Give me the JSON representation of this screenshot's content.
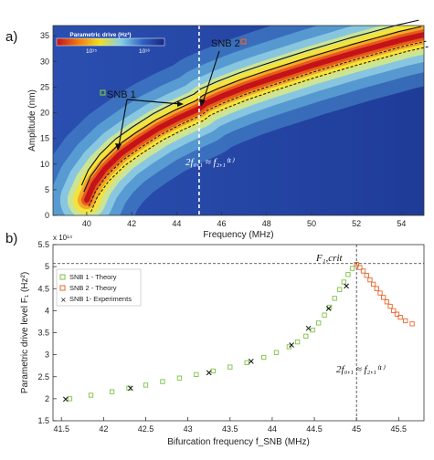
{
  "panel_a": {
    "letter": "a)",
    "colorbar": {
      "title": "Parametric drive (Hz²)",
      "tick_left": "10¹⁵",
      "tick_right": "10¹⁶"
    },
    "label_snb1": "SNB 1",
    "label_snb2": "SNB 2",
    "annotation": "2f₀,₁ ≈ f₂,₁⁽¹⁾"
  },
  "panel_b": {
    "letter": "b)",
    "exponent_label": "x 10¹⁴",
    "fcrit_label": "F₁,crit",
    "annotation": "2f₀,₁ ≈ f₂,₁⁽¹⁾",
    "legend": [
      "SNB 1 - Theory",
      "SNB 2 - Theory",
      "SNB 1- Experiments"
    ]
  },
  "colors": {
    "snb1": "#7dc242",
    "snb2": "#e8652b",
    "experiment": "#111111"
  },
  "chart_data": [
    {
      "type": "heatmap",
      "xlabel": "Frequency (MHz)",
      "ylabel": "Amplitude (nm)",
      "xlim": [
        38.5,
        55
      ],
      "ylim": [
        0,
        37
      ],
      "x_ticks": [
        40,
        42,
        44,
        46,
        48,
        50,
        52,
        54
      ],
      "y_ticks": [
        0,
        5,
        10,
        15,
        20,
        25,
        30,
        35
      ],
      "colorbar_scale": "log",
      "vertical_marker_x": 45,
      "series": [
        {
          "x": [
            40.0,
            40.3,
            40.8,
            41.5,
            42.3,
            43.2,
            44.0,
            44.7,
            45.0
          ],
          "y": [
            3,
            6,
            9,
            12,
            14.5,
            17,
            18.8,
            20.2,
            20.8
          ]
        },
        {
          "x": [
            44.7,
            45.3,
            46,
            47,
            48,
            49,
            50,
            51,
            52,
            53,
            54,
            55
          ],
          "y": [
            20.2,
            21.8,
            23.2,
            24.9,
            26.4,
            27.8,
            29.2,
            30.5,
            31.8,
            33.0,
            34.2,
            35.2
          ]
        }
      ]
    },
    {
      "type": "scatter",
      "xlabel": "Bifurcation frequency f_SNB (MHz)",
      "ylabel": "Parametric drive level F₁ (Hz²)",
      "xlim": [
        41.4,
        45.8
      ],
      "ylim": [
        1.5,
        5.5
      ],
      "x_ticks": [
        41.5,
        42,
        42.5,
        43,
        43.5,
        44,
        44.5,
        45,
        45.5
      ],
      "y_ticks": [
        1.5,
        2,
        2.5,
        3,
        3.5,
        4,
        4.5,
        5,
        5.5
      ],
      "y_multiplier": "1e14",
      "hline_y": 5.07,
      "vline_x": 45.0,
      "series": [
        {
          "name": "SNB 1 - Theory",
          "x": [
            41.6,
            41.85,
            42.1,
            42.3,
            42.5,
            42.7,
            42.9,
            43.1,
            43.3,
            43.5,
            43.7,
            43.9,
            44.05,
            44.2,
            44.3,
            44.4,
            44.48,
            44.55,
            44.62,
            44.68,
            44.74,
            44.8,
            44.85,
            44.9,
            44.95,
            45.0
          ],
          "y": [
            2.0,
            2.08,
            2.16,
            2.24,
            2.31,
            2.39,
            2.47,
            2.55,
            2.63,
            2.72,
            2.82,
            2.94,
            3.05,
            3.18,
            3.29,
            3.42,
            3.56,
            3.72,
            3.9,
            4.08,
            4.28,
            4.48,
            4.65,
            4.82,
            4.96,
            5.05
          ]
        },
        {
          "name": "SNB 2 - Theory",
          "x": [
            45.0,
            45.04,
            45.08,
            45.12,
            45.16,
            45.2,
            45.24,
            45.28,
            45.32,
            45.36,
            45.4,
            45.44,
            45.48,
            45.52,
            45.58,
            45.66
          ],
          "y": [
            5.05,
            4.98,
            4.9,
            4.8,
            4.7,
            4.6,
            4.5,
            4.4,
            4.3,
            4.2,
            4.1,
            4.0,
            3.92,
            3.85,
            3.77,
            3.7
          ]
        },
        {
          "name": "SNB 1- Experiments",
          "x": [
            41.55,
            42.32,
            43.25,
            43.75,
            44.23,
            44.43,
            44.67,
            44.88
          ],
          "y": [
            1.99,
            2.24,
            2.59,
            2.85,
            3.22,
            3.6,
            4.05,
            4.56
          ]
        }
      ]
    }
  ]
}
